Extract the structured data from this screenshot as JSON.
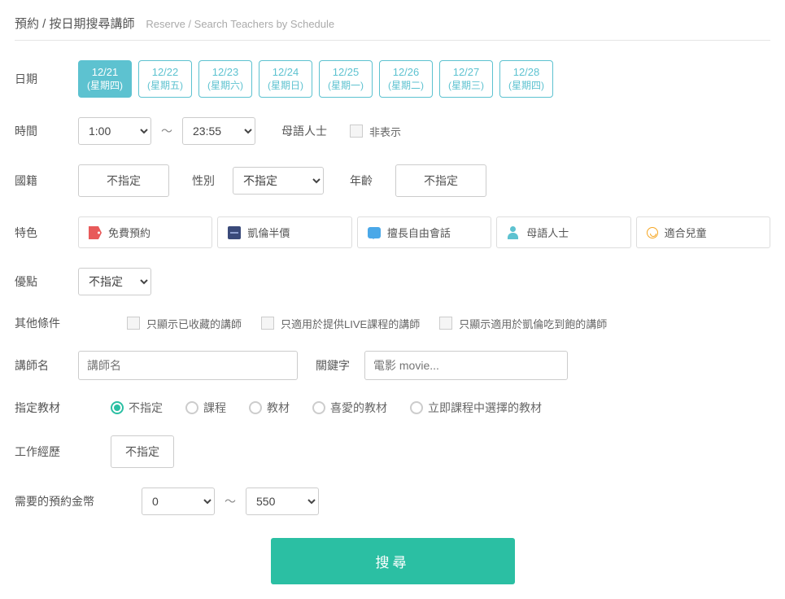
{
  "header": {
    "title": "預約 / 按日期搜尋講師",
    "subtitle": "Reserve / Search Teachers by Schedule"
  },
  "labels": {
    "date": "日期",
    "time": "時間",
    "native": "母語人士",
    "hide": "非表示",
    "nationality": "國籍",
    "gender": "性別",
    "age": "年齡",
    "feature": "特色",
    "merit": "優點",
    "other": "其他條件",
    "teacher_name": "講師名",
    "keyword": "關鍵字",
    "material": "指定教材",
    "experience": "工作經歷",
    "coins": "需要的預約金幣"
  },
  "dates": [
    {
      "d": "12/21",
      "w": "(星期四)",
      "active": true
    },
    {
      "d": "12/22",
      "w": "(星期五)",
      "active": false
    },
    {
      "d": "12/23",
      "w": "(星期六)",
      "active": false
    },
    {
      "d": "12/24",
      "w": "(星期日)",
      "active": false
    },
    {
      "d": "12/25",
      "w": "(星期一)",
      "active": false
    },
    {
      "d": "12/26",
      "w": "(星期二)",
      "active": false
    },
    {
      "d": "12/27",
      "w": "(星期三)",
      "active": false
    },
    {
      "d": "12/28",
      "w": "(星期四)",
      "active": false
    }
  ],
  "time": {
    "from": "1:00",
    "to": "23:55",
    "tilde": "～"
  },
  "unspecified": "不指定",
  "features": [
    {
      "icon": "tag",
      "label": "免費預約"
    },
    {
      "icon": "box",
      "label": "凱倫半價"
    },
    {
      "icon": "chat",
      "label": "擅長自由會話"
    },
    {
      "icon": "person",
      "label": "母語人士"
    },
    {
      "icon": "smile",
      "label": "適合兒童"
    }
  ],
  "other_checks": [
    "只顯示已收藏的講師",
    "只適用於提供LIVE課程的講師",
    "只顯示適用於凱倫吃到飽的講師"
  ],
  "teacher_name_placeholder": "講師名",
  "keyword_placeholder": "電影 movie...",
  "material_options": [
    "不指定",
    "課程",
    "教材",
    "喜愛的教材",
    "立即課程中選擇的教材"
  ],
  "material_selected": 0,
  "coins": {
    "from": "0",
    "to": "550"
  },
  "search_button": "搜尋",
  "colors": {
    "date_active_bg": "#5dc2d0",
    "search_bg": "#2bbfa3",
    "radio_checked": "#2bbfa3"
  }
}
